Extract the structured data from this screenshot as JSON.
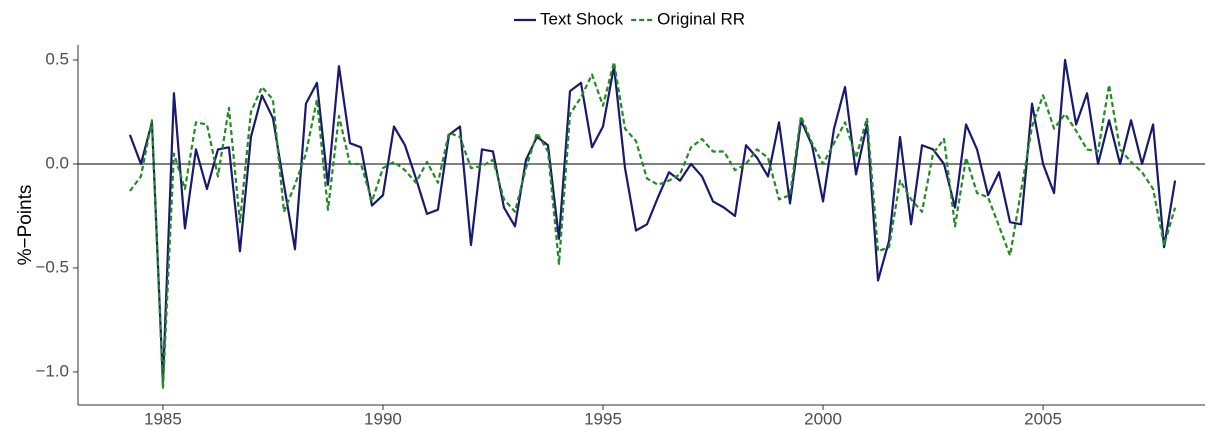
{
  "chart_data": {
    "type": "line",
    "y_label": "%−Points",
    "x": [
      1984.25,
      1984.5,
      1984.75,
      1985,
      1985.25,
      1985.5,
      1985.75,
      1986,
      1986.25,
      1986.5,
      1986.75,
      1987,
      1987.25,
      1987.5,
      1987.75,
      1988,
      1988.25,
      1988.5,
      1988.75,
      1989,
      1989.25,
      1989.5,
      1989.75,
      1990,
      1990.25,
      1990.5,
      1990.75,
      1991,
      1991.25,
      1991.5,
      1991.75,
      1992,
      1992.25,
      1992.5,
      1992.75,
      1993,
      1993.25,
      1993.5,
      1993.75,
      1994,
      1994.25,
      1994.5,
      1994.75,
      1995,
      1995.25,
      1995.5,
      1995.75,
      1996,
      1996.25,
      1996.5,
      1996.75,
      1997,
      1997.25,
      1997.5,
      1997.75,
      1998,
      1998.25,
      1998.5,
      1998.75,
      1999,
      1999.25,
      1999.5,
      1999.75,
      2000,
      2000.25,
      2000.5,
      2000.75,
      2001,
      2001.25,
      2001.5,
      2001.75,
      2002,
      2002.25,
      2002.5,
      2002.75,
      2003,
      2003.25,
      2003.5,
      2003.75,
      2004,
      2004.25,
      2004.5,
      2004.75,
      2005,
      2005.25,
      2005.5,
      2005.75,
      2006,
      2006.25,
      2006.5,
      2006.75,
      2007,
      2007.25,
      2007.5,
      2007.75,
      2008
    ],
    "series": [
      {
        "name": "Text Shock",
        "color": "#191970",
        "dashed": false,
        "values": [
          0.14,
          0.0,
          0.2,
          -1.05,
          0.34,
          -0.31,
          0.07,
          -0.12,
          0.07,
          0.08,
          -0.42,
          0.13,
          0.33,
          0.22,
          -0.1,
          -0.41,
          0.29,
          0.39,
          -0.1,
          0.47,
          0.1,
          0.08,
          -0.2,
          -0.15,
          0.18,
          0.09,
          -0.07,
          -0.24,
          -0.22,
          0.14,
          0.18,
          -0.39,
          0.07,
          0.06,
          -0.21,
          -0.3,
          0.02,
          0.13,
          0.09,
          -0.36,
          0.35,
          0.39,
          0.08,
          0.18,
          0.47,
          -0.02,
          -0.32,
          -0.29,
          -0.16,
          -0.04,
          -0.08,
          0.0,
          -0.06,
          -0.18,
          -0.21,
          -0.25,
          0.09,
          0.03,
          -0.06,
          0.2,
          -0.19,
          0.21,
          0.09,
          -0.18,
          0.17,
          0.37,
          -0.05,
          0.19,
          -0.56,
          -0.37,
          0.13,
          -0.29,
          0.09,
          0.07,
          0.0,
          -0.21,
          0.19,
          0.07,
          -0.15,
          -0.04,
          -0.28,
          -0.29,
          0.29,
          0.0,
          -0.14,
          0.5,
          0.19,
          0.34,
          0.0,
          0.21,
          0.0,
          0.21,
          0.0,
          0.19,
          -0.4,
          -0.08
        ]
      },
      {
        "name": "Original RR",
        "color": "#228b22",
        "dashed": true,
        "values": [
          -0.13,
          -0.06,
          0.21,
          -1.08,
          0.05,
          -0.12,
          0.2,
          0.19,
          -0.06,
          0.27,
          -0.28,
          0.25,
          0.37,
          0.31,
          -0.23,
          -0.1,
          0.05,
          0.31,
          -0.22,
          0.23,
          0.0,
          0.0,
          -0.18,
          -0.02,
          0.01,
          -0.03,
          -0.09,
          0.01,
          -0.09,
          0.15,
          0.13,
          -0.02,
          -0.01,
          0.02,
          -0.17,
          -0.23,
          -0.02,
          0.15,
          0.06,
          -0.48,
          0.24,
          0.32,
          0.43,
          0.28,
          0.49,
          0.17,
          0.11,
          -0.07,
          -0.1,
          -0.08,
          -0.05,
          0.08,
          0.12,
          0.06,
          0.06,
          -0.03,
          0.0,
          0.07,
          0.03,
          -0.17,
          -0.15,
          0.23,
          0.1,
          0.0,
          0.1,
          0.2,
          0.03,
          0.22,
          -0.42,
          -0.4,
          -0.08,
          -0.17,
          -0.23,
          0.05,
          0.12,
          -0.3,
          0.03,
          -0.14,
          -0.16,
          -0.3,
          -0.44,
          -0.13,
          0.18,
          0.33,
          0.17,
          0.24,
          0.16,
          0.07,
          0.06,
          0.38,
          0.07,
          0.01,
          -0.04,
          -0.12,
          -0.39,
          -0.21
        ]
      }
    ],
    "xlim": [
      1983.07,
      2008.68
    ],
    "ylim": [
      -1.159,
      0.572
    ],
    "xticks": [
      1985,
      1990,
      1995,
      2000,
      2005
    ],
    "yticks": [
      {
        "value": -1.0,
        "label": "−1.0"
      },
      {
        "value": -0.5,
        "label": "−0.5"
      },
      {
        "value": 0,
        "label": "0.0"
      },
      0.5
    ],
    "zero_line": true,
    "legend": "top"
  }
}
